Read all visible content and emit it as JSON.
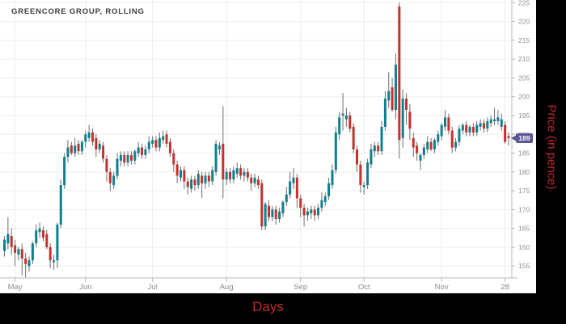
{
  "title": "GREENCORE GROUP, ROLLING",
  "x_axis": {
    "label": "Days",
    "ticks": [
      {
        "label": "May",
        "index": 3
      },
      {
        "label": "Jun",
        "index": 23
      },
      {
        "label": "Jul",
        "index": 42
      },
      {
        "label": "Aug",
        "index": 63
      },
      {
        "label": "Sep",
        "index": 84
      },
      {
        "label": "Oct",
        "index": 102
      },
      {
        "label": "Nov",
        "index": 124
      },
      {
        "label": "28",
        "index": 142
      }
    ]
  },
  "y_axis": {
    "label": "Price (in pence)",
    "min": 155,
    "max": 225,
    "step": 5,
    "ticks": [
      225,
      220,
      215,
      210,
      205,
      200,
      195,
      190,
      185,
      180,
      175,
      170,
      165,
      160,
      155
    ]
  },
  "price_marker": {
    "value": 189,
    "label": "189"
  },
  "colors": {
    "up": "#0f7f8e",
    "down": "#c5312d",
    "wick": "#6e6e6e",
    "grid": "#ededed",
    "axis": "#b8b8b8",
    "tick_label": "#8d8d9c",
    "month_label": "#8a8a8a",
    "marker_bg": "#5b5694",
    "marker_text": "#ffffff",
    "band_bg": "#000000",
    "band_text": "#c0272d",
    "title_color": "#3d3d3d",
    "background": "#ffffff"
  },
  "chart_data": {
    "type": "candlestick",
    "title": "GREENCORE GROUP, ROLLING",
    "xlabel": "Days",
    "ylabel": "Price (in pence)",
    "ylim": [
      151,
      226
    ],
    "grid": true,
    "legend_position": "none",
    "last_price": 189,
    "series": [
      {
        "name": "Greencore Group",
        "ohlc": [
          [
            159,
            163,
            157.5,
            162
          ],
          [
            161,
            168,
            159.5,
            163.5
          ],
          [
            163,
            165,
            158,
            160
          ],
          [
            160.5,
            162,
            155,
            158.5
          ],
          [
            158,
            160,
            156.5,
            159.5
          ],
          [
            159.5,
            161,
            152.5,
            157
          ],
          [
            157,
            158.5,
            152,
            155.5
          ],
          [
            155,
            157.5,
            153.5,
            156.5
          ],
          [
            156.5,
            161.5,
            155.5,
            161
          ],
          [
            161,
            166,
            160,
            164.5
          ],
          [
            164,
            166.5,
            162.5,
            165
          ],
          [
            164.5,
            165.5,
            161.5,
            162.5
          ],
          [
            163.5,
            164.5,
            159.5,
            160
          ],
          [
            160,
            161,
            154.5,
            156.5
          ],
          [
            156,
            158,
            154,
            156.5
          ],
          [
            156.5,
            166.5,
            154.5,
            166
          ],
          [
            166,
            178,
            165,
            176.5
          ],
          [
            176.5,
            185,
            175.5,
            184
          ],
          [
            184,
            188.5,
            182.5,
            186.5
          ],
          [
            187,
            188,
            184.5,
            185
          ],
          [
            185,
            189,
            184,
            187
          ],
          [
            187.5,
            188.5,
            184.5,
            185.5
          ],
          [
            185.5,
            188.5,
            184.5,
            188
          ],
          [
            188,
            191,
            186.5,
            190
          ],
          [
            189,
            192.5,
            188,
            190.5
          ],
          [
            190.5,
            191.5,
            187,
            188
          ],
          [
            189,
            190,
            184,
            186
          ],
          [
            186,
            188.5,
            185,
            187.5
          ],
          [
            187,
            188,
            182.5,
            183.5
          ],
          [
            183.5,
            184.5,
            177.5,
            180
          ],
          [
            180,
            181,
            175,
            177
          ],
          [
            176.5,
            180,
            175.5,
            179
          ],
          [
            179,
            185,
            178,
            183.5
          ],
          [
            183,
            185.5,
            181.5,
            184.5
          ],
          [
            184.5,
            185.5,
            181.5,
            182.5
          ],
          [
            182.5,
            185.5,
            181.5,
            184.5
          ],
          [
            184.5,
            185.5,
            182,
            183
          ],
          [
            183,
            186,
            182,
            185.5
          ],
          [
            185,
            188,
            184,
            186.5
          ],
          [
            186.5,
            187.5,
            183.5,
            184.5
          ],
          [
            184.5,
            187,
            183.5,
            186
          ],
          [
            186,
            189.5,
            185,
            188
          ],
          [
            187.5,
            189.5,
            186.5,
            188.5
          ],
          [
            188.5,
            189.5,
            185.5,
            186.5
          ],
          [
            186.5,
            190.5,
            185.5,
            189
          ],
          [
            188.5,
            191,
            187.5,
            189.5
          ],
          [
            190,
            191,
            186.5,
            187.5
          ],
          [
            188,
            189,
            184,
            185
          ],
          [
            185,
            186,
            180,
            182
          ],
          [
            182,
            183,
            177,
            179
          ],
          [
            178.5,
            181.5,
            177.5,
            180.5
          ],
          [
            180.5,
            181.5,
            175.5,
            177.5
          ],
          [
            177.5,
            178.5,
            174,
            176
          ],
          [
            175.5,
            179,
            174.5,
            178
          ],
          [
            178,
            179,
            175,
            176.5
          ],
          [
            176.5,
            180.5,
            175.5,
            179.5
          ],
          [
            179,
            180,
            173,
            177
          ],
          [
            177,
            180,
            175.5,
            179
          ],
          [
            179,
            180,
            176,
            177.5
          ],
          [
            177.5,
            181.5,
            176.5,
            180.5
          ],
          [
            180,
            188.5,
            179,
            187.5
          ],
          [
            186,
            188,
            184.5,
            187
          ],
          [
            187.5,
            197.5,
            173,
            178
          ],
          [
            178,
            181,
            176.5,
            180
          ],
          [
            180,
            181,
            177,
            178
          ],
          [
            178,
            181.5,
            177,
            180.5
          ],
          [
            179.5,
            182.5,
            178.5,
            181
          ],
          [
            181,
            182,
            178,
            179
          ],
          [
            179,
            181,
            177.5,
            180
          ],
          [
            180,
            181,
            177.5,
            178.5
          ],
          [
            178.5,
            179.5,
            175,
            177
          ],
          [
            177,
            179.5,
            176,
            178.5
          ],
          [
            178,
            179,
            175.5,
            176.5
          ],
          [
            177,
            178,
            164.5,
            165.5
          ],
          [
            165.5,
            172,
            164.5,
            171.5
          ],
          [
            171,
            172.5,
            167,
            168
          ],
          [
            168,
            171,
            167,
            170
          ],
          [
            170,
            171,
            166,
            167.5
          ],
          [
            167.5,
            170.5,
            166.5,
            169.5
          ],
          [
            169,
            172.5,
            168,
            172
          ],
          [
            172,
            176,
            171,
            174
          ],
          [
            174,
            180,
            173,
            177.5
          ],
          [
            177,
            181,
            175.5,
            178.5
          ],
          [
            178.5,
            179.5,
            170.5,
            173
          ],
          [
            173,
            174,
            168,
            170.5
          ],
          [
            170.5,
            171.5,
            165.5,
            168.5
          ],
          [
            168.5,
            170.5,
            167,
            169.5
          ],
          [
            169,
            171,
            167.5,
            170
          ],
          [
            170,
            171,
            167,
            168.5
          ],
          [
            168.5,
            171.5,
            167.5,
            170.5
          ],
          [
            170.5,
            174.5,
            169.5,
            172.5
          ],
          [
            172,
            174.5,
            171,
            173.5
          ],
          [
            173.5,
            178.5,
            172.5,
            177
          ],
          [
            176.5,
            182,
            175.5,
            180.5
          ],
          [
            180.5,
            192,
            179.5,
            190.5
          ],
          [
            190,
            196,
            188.5,
            194.5
          ],
          [
            195,
            201,
            191,
            195.5
          ],
          [
            194,
            197,
            192,
            195
          ],
          [
            195,
            196,
            190.5,
            191.5
          ],
          [
            192,
            193,
            185,
            186
          ],
          [
            186,
            187,
            180,
            182
          ],
          [
            182,
            183,
            174.5,
            176.5
          ],
          [
            176,
            177.5,
            174,
            176.5
          ],
          [
            176.5,
            183.5,
            175.5,
            182.5
          ],
          [
            182,
            187.5,
            181,
            186
          ],
          [
            185.5,
            188,
            184,
            187
          ],
          [
            187,
            188,
            184.5,
            185.5
          ],
          [
            185.5,
            193.5,
            184.5,
            192
          ],
          [
            192,
            201.5,
            191,
            199.5
          ],
          [
            199,
            206.5,
            197,
            201.5
          ],
          [
            202.5,
            205,
            196,
            196.5
          ],
          [
            196.5,
            211.5,
            194,
            208.5
          ],
          [
            224,
            225,
            183.5,
            188.5
          ],
          [
            189,
            202,
            186.5,
            199.5
          ],
          [
            199.5,
            201,
            192.5,
            196.5
          ],
          [
            196,
            198,
            188.5,
            191.5
          ],
          [
            189,
            190.5,
            184,
            186.5
          ],
          [
            187,
            188,
            183,
            185
          ],
          [
            183,
            185,
            180.5,
            184.5
          ],
          [
            184.5,
            187.5,
            183.5,
            186.5
          ],
          [
            186,
            189.5,
            185,
            188
          ],
          [
            188,
            189,
            185.5,
            186
          ],
          [
            186,
            189,
            185,
            188.5
          ],
          [
            188,
            191,
            187,
            190
          ],
          [
            189.5,
            193,
            188.5,
            192.5
          ],
          [
            192,
            196.5,
            191,
            194.5
          ],
          [
            194.5,
            195.5,
            190,
            191
          ],
          [
            191,
            192,
            185,
            186.5
          ],
          [
            186.5,
            189,
            185.5,
            188
          ],
          [
            188,
            192.5,
            187,
            191.5
          ],
          [
            191,
            193,
            190,
            192.5
          ],
          [
            192.5,
            193.5,
            189.5,
            190.5
          ],
          [
            190.5,
            192.5,
            189.5,
            192
          ],
          [
            192,
            193,
            189.5,
            190.5
          ],
          [
            190.5,
            193.5,
            189.5,
            192.5
          ],
          [
            192,
            194,
            191,
            193
          ],
          [
            193,
            194,
            190.5,
            191.5
          ],
          [
            191.5,
            194.5,
            190.5,
            193.5
          ],
          [
            193,
            195,
            192,
            194
          ],
          [
            193.5,
            197,
            192.5,
            194
          ],
          [
            193.5,
            196.5,
            192.5,
            194.5
          ],
          [
            192,
            195.5,
            191,
            194
          ],
          [
            192.5,
            193.5,
            187.5,
            188
          ],
          [
            189.5,
            190.5,
            187,
            189
          ]
        ]
      }
    ]
  }
}
